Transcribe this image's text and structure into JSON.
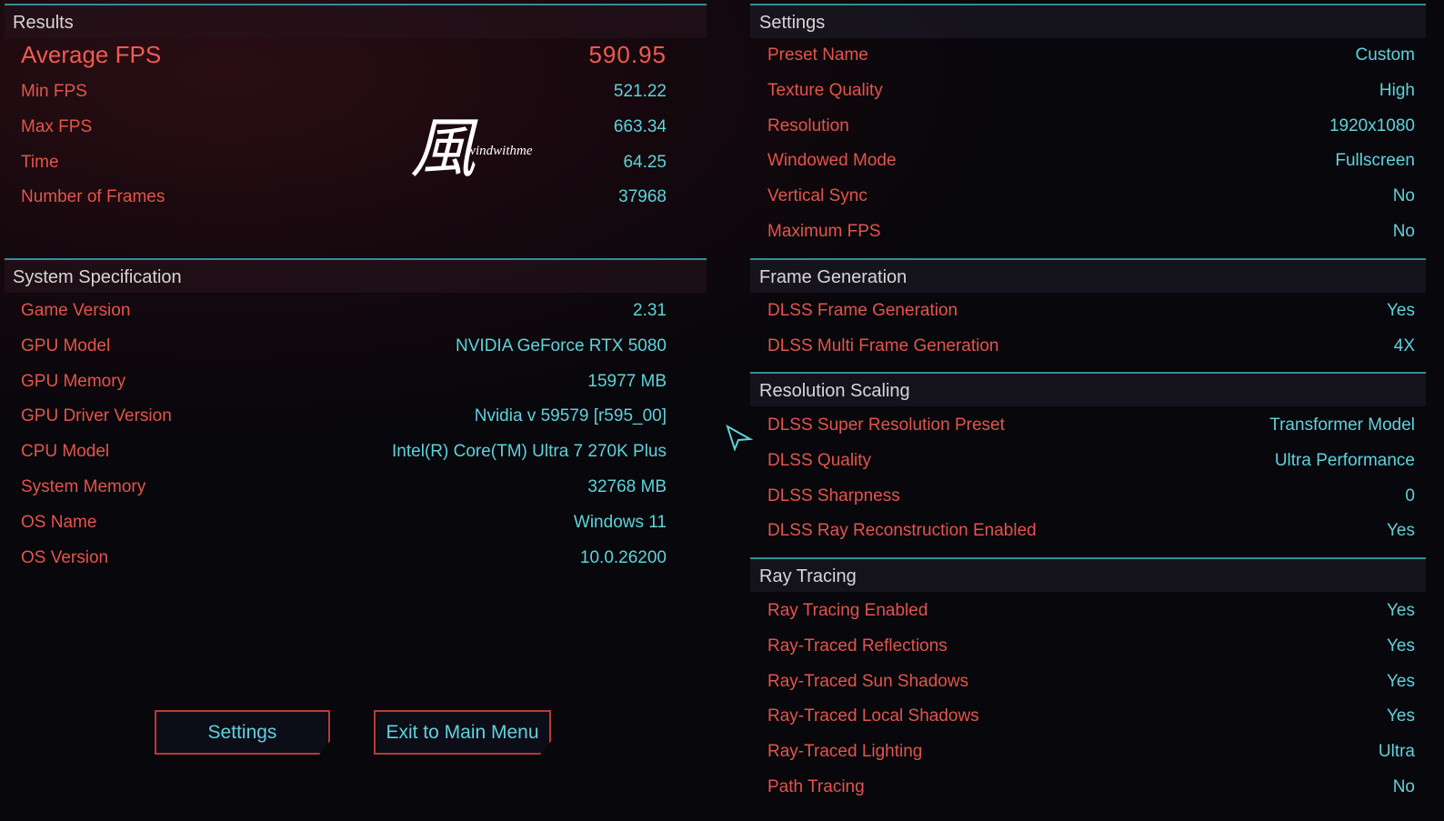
{
  "results": {
    "title": "Results",
    "average": {
      "label": "Average FPS",
      "value": "590.95"
    },
    "rows": [
      {
        "label": "Min FPS",
        "value": "521.22"
      },
      {
        "label": "Max FPS",
        "value": "663.34"
      },
      {
        "label": "Time",
        "value": "64.25"
      },
      {
        "label": "Number of Frames",
        "value": "37968"
      }
    ]
  },
  "system": {
    "title": "System Specification",
    "rows": [
      {
        "label": "Game Version",
        "value": "2.31"
      },
      {
        "label": "GPU Model",
        "value": "NVIDIA GeForce RTX 5080"
      },
      {
        "label": "GPU Memory",
        "value": "15977 MB"
      },
      {
        "label": "GPU Driver Version",
        "value": "Nvidia v 59579 [r595_00]"
      },
      {
        "label": "CPU Model",
        "value": "Intel(R) Core(TM) Ultra 7 270K Plus"
      },
      {
        "label": "System Memory",
        "value": "32768 MB"
      },
      {
        "label": "OS Name",
        "value": "Windows 11"
      },
      {
        "label": "OS Version",
        "value": "10.0.26200"
      }
    ]
  },
  "buttons": {
    "settings": "Settings",
    "exit": "Exit to Main Menu"
  },
  "watermark": {
    "glyph": "風",
    "text": "windwithme"
  },
  "settings": {
    "title": "Settings",
    "rows": [
      {
        "label": "Preset Name",
        "value": "Custom"
      },
      {
        "label": "Texture Quality",
        "value": "High"
      },
      {
        "label": "Resolution",
        "value": "1920x1080"
      },
      {
        "label": "Windowed Mode",
        "value": "Fullscreen"
      },
      {
        "label": "Vertical Sync",
        "value": "No"
      },
      {
        "label": "Maximum FPS",
        "value": "No"
      }
    ]
  },
  "frame_generation": {
    "title": "Frame Generation",
    "rows": [
      {
        "label": "DLSS Frame Generation",
        "value": "Yes"
      },
      {
        "label": "DLSS Multi Frame Generation",
        "value": "4X"
      }
    ]
  },
  "resolution_scaling": {
    "title": "Resolution Scaling",
    "rows": [
      {
        "label": "DLSS Super Resolution Preset",
        "value": "Transformer Model"
      },
      {
        "label": "DLSS Quality",
        "value": "Ultra Performance"
      },
      {
        "label": "DLSS Sharpness",
        "value": "0"
      },
      {
        "label": "DLSS Ray Reconstruction Enabled",
        "value": "Yes"
      }
    ]
  },
  "ray_tracing": {
    "title": "Ray Tracing",
    "rows": [
      {
        "label": "Ray Tracing Enabled",
        "value": "Yes"
      },
      {
        "label": "Ray-Traced Reflections",
        "value": "Yes"
      },
      {
        "label": "Ray-Traced Sun Shadows",
        "value": "Yes"
      },
      {
        "label": "Ray-Traced Local Shadows",
        "value": "Yes"
      },
      {
        "label": "Ray-Traced Lighting",
        "value": "Ultra"
      },
      {
        "label": "Path Tracing",
        "value": "No"
      }
    ]
  },
  "colors": {
    "label": "#e4544b",
    "value": "#5ed3dc",
    "accent_line": "#2f8f97",
    "button_border": "#b83a34"
  },
  "icons": {
    "cursor": "pointer-arrow-icon"
  }
}
